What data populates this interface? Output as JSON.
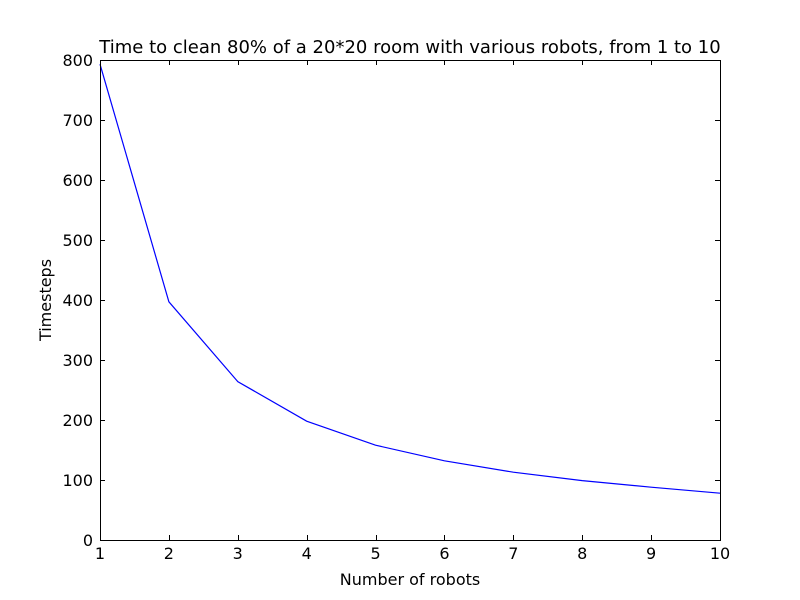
{
  "chart_data": {
    "type": "line",
    "title": "Time to clean 80% of a 20*20 room with various robots, from 1 to 10",
    "xlabel": "Number of robots",
    "ylabel": "Timesteps",
    "xlim": [
      1,
      10
    ],
    "ylim": [
      0,
      800
    ],
    "xticks": [
      1,
      2,
      3,
      4,
      5,
      6,
      7,
      8,
      9,
      10
    ],
    "yticks": [
      0,
      100,
      200,
      300,
      400,
      500,
      600,
      700,
      800
    ],
    "grid": false,
    "series": [
      {
        "color": "#0000ff",
        "x": [
          1,
          2,
          3,
          4,
          5,
          6,
          7,
          8,
          9,
          10
        ],
        "y": [
          793,
          397,
          264,
          198,
          158,
          132,
          113,
          99,
          88,
          78
        ]
      }
    ]
  }
}
